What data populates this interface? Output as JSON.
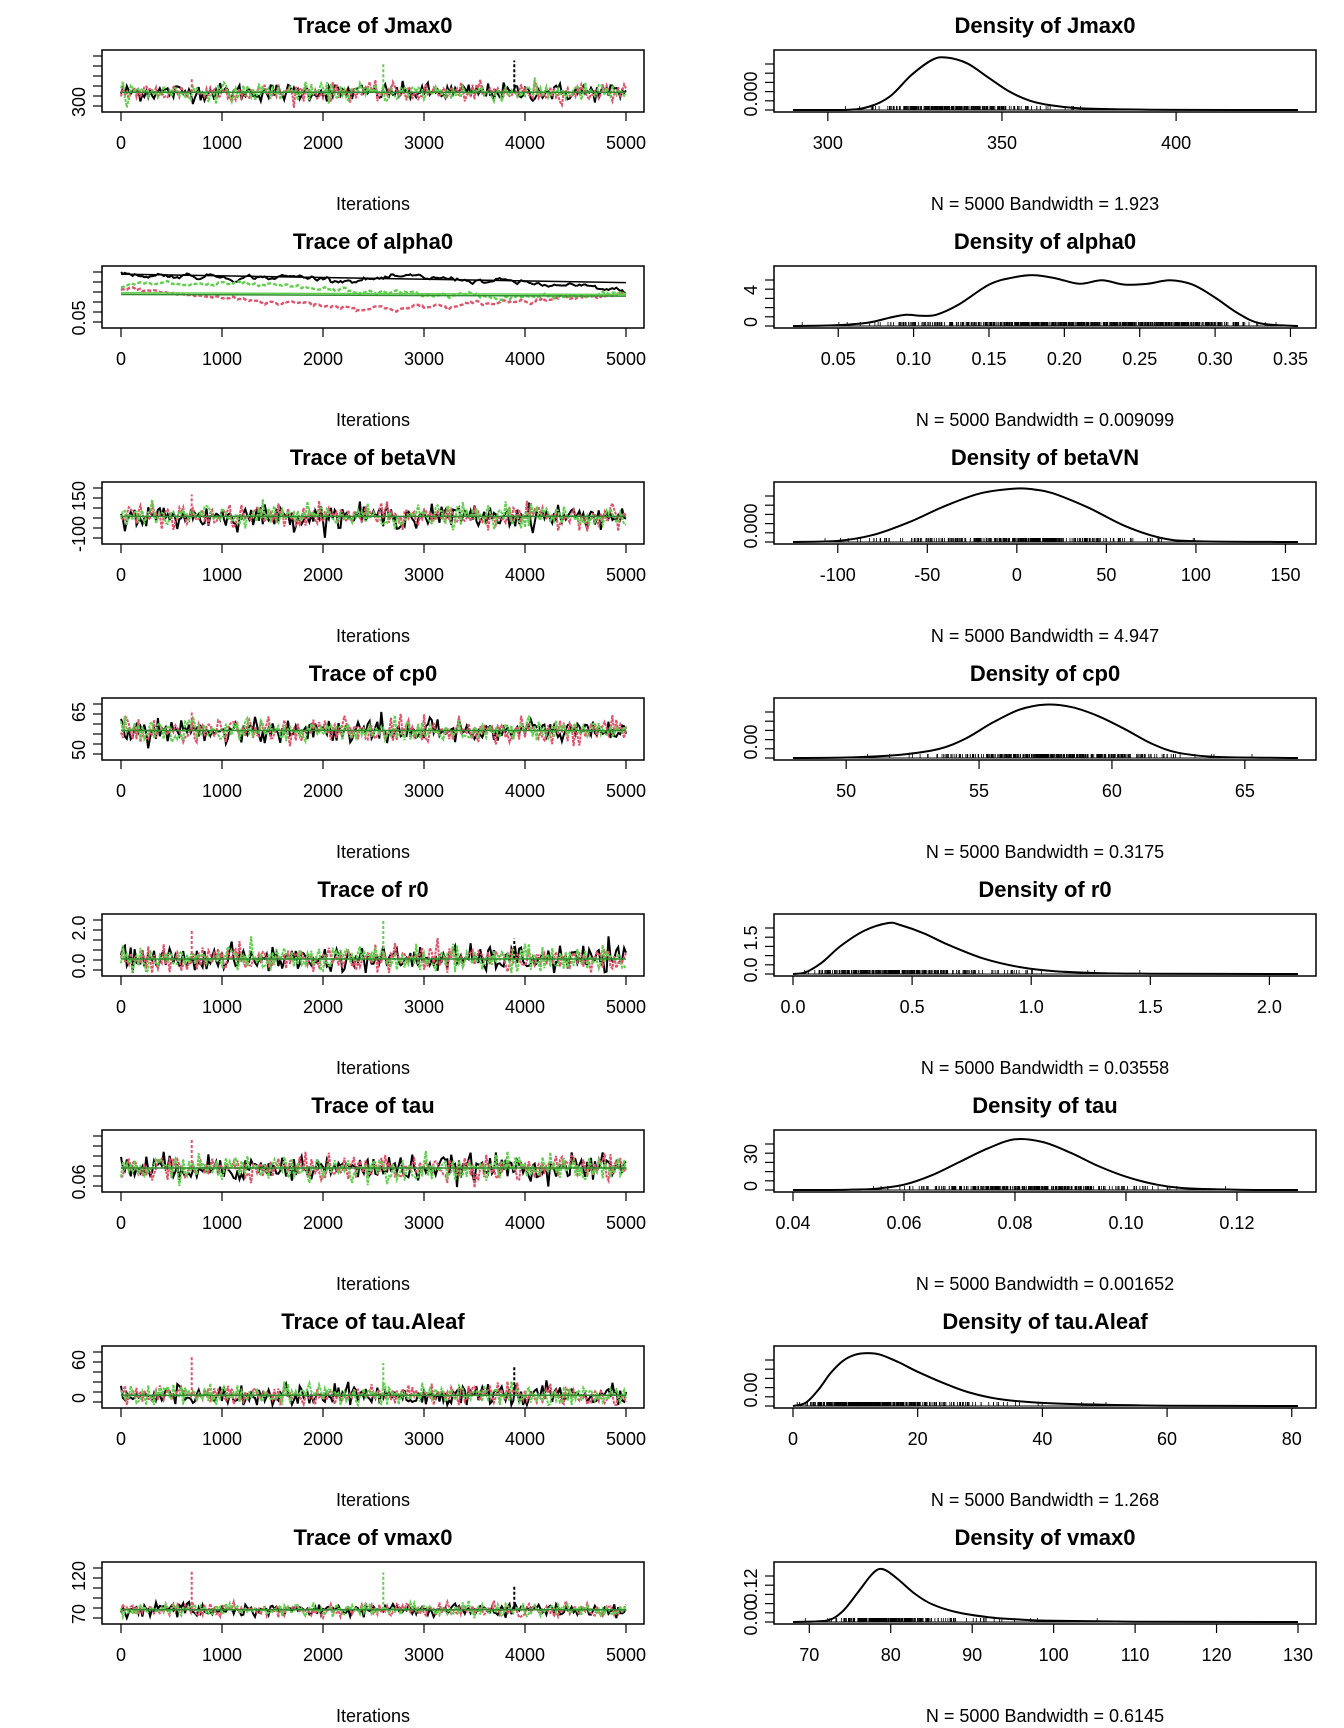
{
  "colors": {
    "chain1": "#000000",
    "chain2": "#DF536B",
    "chain3": "#61D04F",
    "smooth": "#2E8B2E"
  },
  "chart_data": [
    {
      "type": "line",
      "kind": "trace",
      "title": "Trace of Jmax0",
      "xlabel": "Iterations",
      "xlim": [
        0,
        5000
      ],
      "xticks": [
        "0",
        "1000",
        "2000",
        "3000",
        "4000",
        "5000"
      ],
      "yticks": [
        "300"
      ],
      "ylim": [
        290,
        440
      ],
      "center": 335,
      "spread": 12,
      "spikes_up": [
        370,
        410,
        420
      ],
      "chains": 3
    },
    {
      "type": "line",
      "kind": "density",
      "title": "Density of Jmax0",
      "subtitle": "N = 5000   Bandwidth = 1.923",
      "xlim": [
        290,
        435
      ],
      "xticks": [
        "300",
        "350",
        "400"
      ],
      "yticks": [
        "0.000"
      ],
      "curve": {
        "x": [
          290,
          305,
          312,
          318,
          324,
          330,
          334,
          340,
          346,
          352,
          358,
          364,
          372,
          385,
          400,
          435
        ],
        "y": [
          0,
          0,
          0.003,
          0.012,
          0.03,
          0.043,
          0.045,
          0.04,
          0.028,
          0.016,
          0.008,
          0.004,
          0.0015,
          0.0005,
          0.0001,
          0
        ]
      },
      "ymax": 0.048
    },
    {
      "type": "line",
      "kind": "trace",
      "title": "Trace of alpha0",
      "xlabel": "Iterations",
      "xlim": [
        0,
        5000
      ],
      "xticks": [
        "0",
        "1000",
        "2000",
        "3000",
        "4000",
        "5000"
      ],
      "yticks": [
        "0.05"
      ],
      "ylim": [
        0.03,
        0.36
      ],
      "chains": 3
    },
    {
      "type": "line",
      "kind": "density",
      "title": "Density of alpha0",
      "subtitle": "N = 5000   Bandwidth = 0.009099",
      "xlim": [
        0.02,
        0.355
      ],
      "xticks": [
        "0.05",
        "0.10",
        "0.15",
        "0.20",
        "0.25",
        "0.30",
        "0.35"
      ],
      "yticks": [
        "0",
        "4"
      ],
      "curve": {
        "x": [
          0.02,
          0.05,
          0.07,
          0.085,
          0.095,
          0.105,
          0.115,
          0.13,
          0.15,
          0.165,
          0.18,
          0.195,
          0.21,
          0.225,
          0.24,
          0.255,
          0.27,
          0.285,
          0.3,
          0.315,
          0.33,
          0.355
        ],
        "y": [
          0,
          0.1,
          0.4,
          1.0,
          1.3,
          1.2,
          1.3,
          2.5,
          4.8,
          5.6,
          5.9,
          5.5,
          4.9,
          5.3,
          4.8,
          4.9,
          5.3,
          4.8,
          3.3,
          1.5,
          0.3,
          0
        ]
      },
      "ymax": 6.5
    },
    {
      "type": "line",
      "kind": "trace",
      "title": "Trace of betaVN",
      "xlabel": "Iterations",
      "xlim": [
        0,
        5000
      ],
      "xticks": [
        "0",
        "1000",
        "2000",
        "3000",
        "4000",
        "5000"
      ],
      "yticks": [
        "-100",
        "150"
      ],
      "ylim": [
        -125,
        170
      ],
      "center": 5,
      "spread": 30,
      "spikes_up": [
        120
      ],
      "chains": 3
    },
    {
      "type": "line",
      "kind": "density",
      "title": "Density of betaVN",
      "subtitle": "N = 5000   Bandwidth = 4.947",
      "xlim": [
        -125,
        157
      ],
      "xticks": [
        "-100",
        "-50",
        "0",
        "50",
        "100",
        "150"
      ],
      "yticks": [
        "0.000"
      ],
      "curve": {
        "x": [
          -125,
          -100,
          -80,
          -60,
          -40,
          -20,
          0,
          10,
          20,
          40,
          60,
          80,
          100,
          157
        ],
        "y": [
          0,
          0.0003,
          0.002,
          0.0055,
          0.01,
          0.0135,
          0.0148,
          0.0145,
          0.0135,
          0.0095,
          0.0045,
          0.0012,
          0.0002,
          0
        ]
      },
      "ymax": 0.0155
    },
    {
      "type": "line",
      "kind": "trace",
      "title": "Trace of cp0",
      "xlabel": "Iterations",
      "xlim": [
        0,
        5000
      ],
      "xticks": [
        "0",
        "1000",
        "2000",
        "3000",
        "4000",
        "5000"
      ],
      "yticks": [
        "50",
        "65"
      ],
      "ylim": [
        49,
        67
      ],
      "center": 57.5,
      "spread": 1.9,
      "spikes_up": [
        64
      ],
      "chains": 3
    },
    {
      "type": "line",
      "kind": "density",
      "title": "Density of cp0",
      "subtitle": "N = 5000   Bandwidth = 0.3175",
      "xlim": [
        48,
        67
      ],
      "xticks": [
        "50",
        "55",
        "60",
        "65"
      ],
      "yticks": [
        "0.00"
      ],
      "curve": {
        "x": [
          48,
          50,
          52,
          53.5,
          54.5,
          55.5,
          56.5,
          57.5,
          58.5,
          59.5,
          60.5,
          61.5,
          62.5,
          64,
          67
        ],
        "y": [
          0,
          0.002,
          0.012,
          0.035,
          0.075,
          0.135,
          0.185,
          0.205,
          0.195,
          0.16,
          0.11,
          0.055,
          0.02,
          0.004,
          0
        ]
      },
      "ymax": 0.215
    },
    {
      "type": "line",
      "kind": "trace",
      "title": "Trace of r0",
      "xlabel": "Iterations",
      "xlim": [
        0,
        5000
      ],
      "xticks": [
        "0",
        "1000",
        "2000",
        "3000",
        "4000",
        "5000"
      ],
      "yticks": [
        "0.0",
        "2.0"
      ],
      "ylim": [
        -0.05,
        2.15
      ],
      "center": 0.5,
      "spread": 0.25,
      "spikes_up": [
        1.6,
        2.0,
        1.3
      ],
      "chains": 3
    },
    {
      "type": "line",
      "kind": "density",
      "title": "Density of r0",
      "subtitle": "N = 5000   Bandwidth = 0.03558",
      "xlim": [
        0.0,
        2.12
      ],
      "xticks": [
        "0.0",
        "0.5",
        "1.0",
        "1.5",
        "2.0"
      ],
      "yticks": [
        "0.0",
        "1.5"
      ],
      "curve": {
        "x": [
          0.0,
          0.05,
          0.12,
          0.2,
          0.3,
          0.4,
          0.45,
          0.55,
          0.65,
          0.8,
          0.95,
          1.1,
          1.3,
          1.5,
          2.12
        ],
        "y": [
          0,
          0.05,
          0.4,
          1.0,
          1.55,
          1.82,
          1.75,
          1.45,
          1.05,
          0.55,
          0.25,
          0.1,
          0.03,
          0.01,
          0
        ]
      },
      "ymax": 2.0
    },
    {
      "type": "line",
      "kind": "trace",
      "title": "Trace of tau",
      "xlabel": "Iterations",
      "xlim": [
        0,
        5000
      ],
      "xticks": [
        "0",
        "1000",
        "2000",
        "3000",
        "4000",
        "5000"
      ],
      "yticks": [
        "0.06"
      ],
      "ylim": [
        0.05,
        0.13
      ],
      "center": 0.08,
      "spread": 0.009,
      "spikes_up": [
        0.12
      ],
      "chains": 3
    },
    {
      "type": "line",
      "kind": "density",
      "title": "Density of tau",
      "subtitle": "N = 5000   Bandwidth = 0.001652",
      "xlim": [
        0.04,
        0.131
      ],
      "xticks": [
        "0.04",
        "0.06",
        "0.08",
        "0.10",
        "0.12"
      ],
      "yticks": [
        "0",
        "30"
      ],
      "curve": {
        "x": [
          0.04,
          0.05,
          0.055,
          0.06,
          0.065,
          0.07,
          0.075,
          0.08,
          0.085,
          0.09,
          0.095,
          0.1,
          0.105,
          0.11,
          0.12,
          0.131
        ],
        "y": [
          0,
          0.2,
          1,
          4,
          11,
          21,
          31,
          38,
          36,
          28,
          18,
          10,
          4.5,
          1.5,
          0.2,
          0
        ]
      },
      "ymax": 42
    },
    {
      "type": "line",
      "kind": "trace",
      "title": "Trace of tau.Aleaf",
      "xlabel": "Iterations",
      "xlim": [
        0,
        5000
      ],
      "xticks": [
        "0",
        "1000",
        "2000",
        "3000",
        "4000",
        "5000"
      ],
      "yticks": [
        "0",
        "60"
      ],
      "ylim": [
        0,
        80
      ],
      "center": 14,
      "spread": 7,
      "spikes_up": [
        70,
        60,
        55
      ],
      "chains": 3
    },
    {
      "type": "line",
      "kind": "density",
      "title": "Density of tau.Aleaf",
      "subtitle": "N = 5000   Bandwidth = 1.268",
      "xlim": [
        0,
        81
      ],
      "xticks": [
        "0",
        "20",
        "40",
        "60",
        "80"
      ],
      "yticks": [
        "0.00"
      ],
      "curve": {
        "x": [
          0,
          2,
          4,
          6,
          8,
          10,
          12,
          14,
          17,
          20,
          24,
          28,
          33,
          40,
          50,
          60,
          81
        ],
        "y": [
          0,
          0.004,
          0.02,
          0.042,
          0.058,
          0.066,
          0.068,
          0.066,
          0.056,
          0.044,
          0.03,
          0.018,
          0.009,
          0.004,
          0.0015,
          0.0004,
          0
        ]
      },
      "ymax": 0.072
    },
    {
      "type": "line",
      "kind": "trace",
      "title": "Trace of vmax0",
      "xlabel": "Iterations",
      "xlim": [
        0,
        5000
      ],
      "xticks": [
        "0",
        "1000",
        "2000",
        "3000",
        "4000",
        "5000"
      ],
      "yticks": [
        "70",
        "120"
      ],
      "ylim": [
        68,
        128
      ],
      "center": 80,
      "spread": 3.5,
      "spikes_up": [
        122,
        120,
        105
      ],
      "chains": 3
    },
    {
      "type": "line",
      "kind": "density",
      "title": "Density of vmax0",
      "subtitle": "N = 5000   Bandwidth = 0.6145",
      "xlim": [
        68,
        130
      ],
      "xticks": [
        "70",
        "80",
        "90",
        "100",
        "110",
        "120",
        "130"
      ],
      "yticks": [
        "0.00",
        "0.12"
      ],
      "curve": {
        "x": [
          68,
          72,
          74,
          76,
          77.5,
          78.5,
          79.5,
          81,
          83,
          85,
          88,
          92,
          96,
          100,
          110,
          130
        ],
        "y": [
          0,
          0.003,
          0.025,
          0.075,
          0.115,
          0.132,
          0.128,
          0.105,
          0.07,
          0.045,
          0.025,
          0.012,
          0.006,
          0.003,
          0.0008,
          0
        ]
      },
      "ymax": 0.14
    }
  ]
}
